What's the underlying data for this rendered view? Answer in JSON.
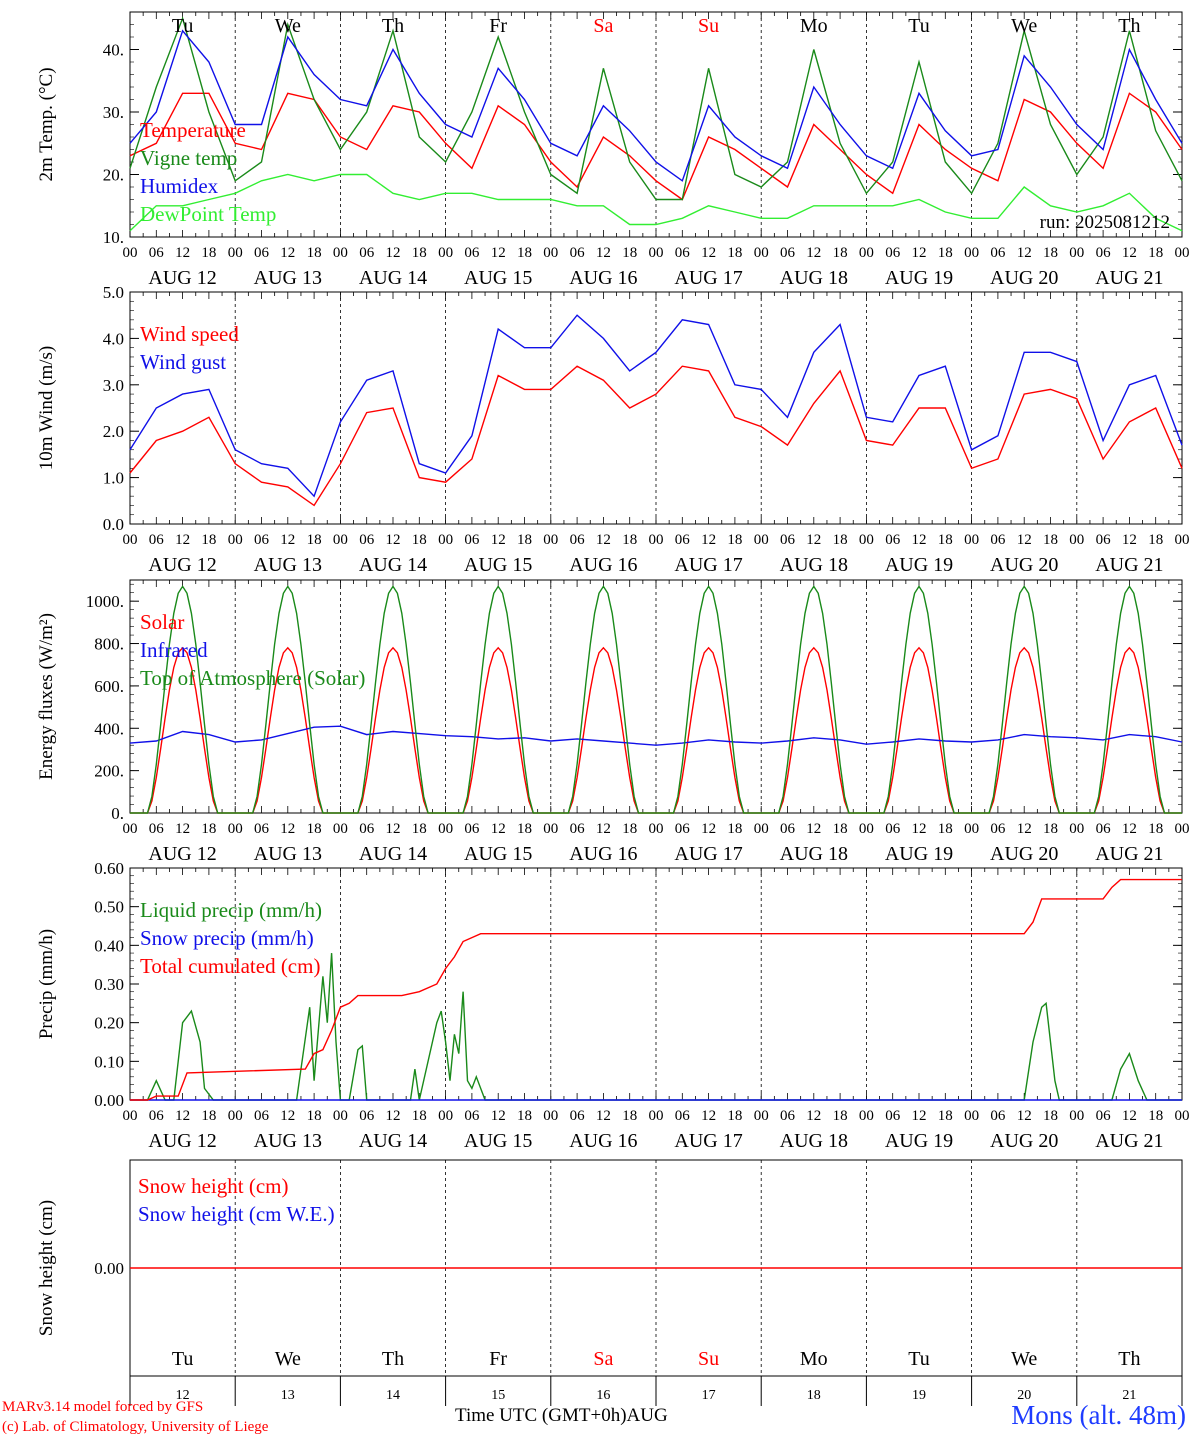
{
  "run_label": "run: 2025081212",
  "footer": {
    "credit_model": "MARv3.14 model forced by GFS",
    "credit_lab": "(c) Lab. of Climatology, University of Liege",
    "xaxis_label": "Time UTC (GMT+0h)AUG",
    "station": "Mons (alt. 48m)"
  },
  "day_labels": [
    "Tu",
    "We",
    "Th",
    "Fr",
    "Sa",
    "Su",
    "Mo",
    "Tu",
    "We",
    "Th"
  ],
  "weekend_days": [
    "Sa",
    "Su"
  ],
  "date_labels": [
    "AUG 12",
    "AUG 13",
    "AUG 14",
    "AUG 15",
    "AUG 16",
    "AUG 17",
    "AUG 18",
    "AUG 19",
    "AUG 20",
    "AUG 21"
  ],
  "day_numbers": [
    "12",
    "13",
    "14",
    "15",
    "16",
    "17",
    "18",
    "19",
    "20",
    "21"
  ],
  "hour_ticks": [
    "00",
    "06",
    "12",
    "18"
  ],
  "colors": {
    "red": "#ff0000",
    "green": "#1a8a1a",
    "blue": "#1010e8",
    "lightgreen": "#32ee32",
    "station": "#1e3cff"
  },
  "chart_data": [
    {
      "type": "line",
      "ylabel": "2m Temp. (°C)",
      "ylim": [
        10,
        46
      ],
      "yticks": [
        "10.",
        "20.",
        "30.",
        "40."
      ],
      "x_unit": "hours since 2025-08-12 00 UTC",
      "x": [
        0,
        6,
        12,
        18,
        24,
        30,
        36,
        42,
        48,
        54,
        60,
        66,
        72,
        78,
        84,
        90,
        96,
        102,
        108,
        114,
        120,
        126,
        132,
        138,
        144,
        150,
        156,
        162,
        168,
        174,
        180,
        186,
        192,
        198,
        204,
        210,
        216,
        222,
        228,
        234,
        240
      ],
      "series": [
        {
          "name": "Temperature",
          "color": "red",
          "values": [
            23,
            25,
            33,
            33,
            25,
            24,
            33,
            32,
            26,
            24,
            31,
            30,
            25,
            21,
            31,
            28,
            22,
            18,
            26,
            23,
            19,
            16,
            26,
            24,
            21,
            18,
            28,
            24,
            20,
            17,
            28,
            24,
            21,
            19,
            32,
            30,
            25,
            21,
            33,
            30,
            24
          ]
        },
        {
          "name": "Vigne temp",
          "color": "green",
          "values": [
            21,
            34,
            45,
            30,
            19,
            22,
            44,
            32,
            24,
            30,
            43,
            26,
            22,
            30,
            42,
            30,
            20,
            17,
            37,
            22,
            16,
            16,
            37,
            20,
            18,
            22,
            40,
            25,
            17,
            22,
            38,
            22,
            17,
            25,
            43,
            28,
            20,
            26,
            43,
            27,
            19
          ]
        },
        {
          "name": "Humidex",
          "color": "blue",
          "values": [
            25,
            30,
            43,
            38,
            28,
            28,
            42,
            36,
            32,
            31,
            40,
            33,
            28,
            26,
            37,
            32,
            25,
            23,
            31,
            27,
            22,
            19,
            31,
            26,
            23,
            21,
            34,
            28,
            23,
            21,
            33,
            27,
            23,
            24,
            39,
            34,
            28,
            24,
            40,
            32,
            25
          ]
        },
        {
          "name": "DewPoint Temp",
          "color": "lightgreen",
          "values": [
            11,
            15,
            15,
            16,
            17,
            19,
            20,
            19,
            20,
            20,
            17,
            16,
            17,
            17,
            16,
            16,
            16,
            15,
            15,
            12,
            12,
            13,
            15,
            14,
            13,
            13,
            15,
            15,
            15,
            15,
            16,
            14,
            13,
            13,
            18,
            15,
            14,
            15,
            17,
            13,
            11
          ]
        }
      ]
    },
    {
      "type": "line",
      "ylabel": "10m Wind (m/s)",
      "ylim": [
        0,
        5
      ],
      "yticks": [
        "0.0",
        "1.0",
        "2.0",
        "3.0",
        "4.0",
        "5.0"
      ],
      "x_unit": "hours since 2025-08-12 00 UTC",
      "x": [
        0,
        6,
        12,
        18,
        24,
        30,
        36,
        42,
        48,
        54,
        60,
        66,
        72,
        78,
        84,
        90,
        96,
        102,
        108,
        114,
        120,
        126,
        132,
        138,
        144,
        150,
        156,
        162,
        168,
        174,
        180,
        186,
        192,
        198,
        204,
        210,
        216,
        222,
        228,
        234,
        240
      ],
      "series": [
        {
          "name": "Wind speed",
          "color": "red",
          "values": [
            1.1,
            1.8,
            2.0,
            2.3,
            1.3,
            0.9,
            0.8,
            0.4,
            1.3,
            2.4,
            2.5,
            1.0,
            0.9,
            1.4,
            3.2,
            2.9,
            2.9,
            3.4,
            3.1,
            2.5,
            2.8,
            3.4,
            3.3,
            2.3,
            2.1,
            1.7,
            2.6,
            3.3,
            1.8,
            1.7,
            2.5,
            2.5,
            1.2,
            1.4,
            2.8,
            2.9,
            2.7,
            1.4,
            2.2,
            2.5,
            1.2
          ]
        },
        {
          "name": "Wind gust",
          "color": "blue",
          "values": [
            1.6,
            2.5,
            2.8,
            2.9,
            1.6,
            1.3,
            1.2,
            0.6,
            2.2,
            3.1,
            3.3,
            1.3,
            1.1,
            1.9,
            4.2,
            3.8,
            3.8,
            4.5,
            4.0,
            3.3,
            3.7,
            4.4,
            4.3,
            3.0,
            2.9,
            2.3,
            3.7,
            4.3,
            2.3,
            2.2,
            3.2,
            3.4,
            1.6,
            1.9,
            3.7,
            3.7,
            3.5,
            1.8,
            3.0,
            3.2,
            1.7
          ]
        }
      ]
    },
    {
      "type": "line",
      "ylabel": "Energy fluxes (W/m²)",
      "ylim": [
        0,
        1100
      ],
      "yticks": [
        "0.",
        "200.",
        "400.",
        "600.",
        "800.",
        "1000."
      ],
      "x_unit": "hours since 2025-08-12 00 UTC",
      "x": [
        0,
        6,
        12,
        18,
        24,
        30,
        36,
        42,
        48,
        54,
        60,
        66,
        72,
        78,
        84,
        90,
        96,
        102,
        108,
        114,
        120,
        126,
        132,
        138,
        144,
        150,
        156,
        162,
        168,
        174,
        180,
        186,
        192,
        198,
        204,
        210,
        216,
        222,
        228,
        234,
        240
      ],
      "series": [
        {
          "name": "Solar",
          "color": "red",
          "diurnal_peak": 780
        },
        {
          "name": "Infrared",
          "color": "blue",
          "values": [
            330,
            340,
            385,
            370,
            335,
            345,
            375,
            405,
            410,
            370,
            385,
            375,
            365,
            360,
            350,
            355,
            340,
            350,
            340,
            330,
            320,
            330,
            345,
            335,
            330,
            340,
            355,
            345,
            325,
            335,
            350,
            340,
            335,
            345,
            370,
            360,
            355,
            345,
            370,
            360,
            335
          ]
        },
        {
          "name": "Top of Atmosphere (Solar)",
          "color": "green",
          "diurnal_peak": 1070
        }
      ]
    },
    {
      "type": "line",
      "ylabel": "Precip (mm/h)",
      "ylim": [
        0,
        0.6
      ],
      "yticks": [
        "0.00",
        "0.10",
        "0.20",
        "0.30",
        "0.40",
        "0.50",
        "0.60"
      ],
      "x_unit": "hours since 2025-08-12 00 UTC",
      "series": [
        {
          "name": "Liquid precip (mm/h)",
          "color": "green",
          "points": [
            [
              0,
              0
            ],
            [
              4,
              0
            ],
            [
              6,
              0.05
            ],
            [
              8,
              0
            ],
            [
              10,
              0
            ],
            [
              12,
              0.2
            ],
            [
              14,
              0.23
            ],
            [
              16,
              0.15
            ],
            [
              17,
              0.03
            ],
            [
              19,
              0
            ],
            [
              38,
              0
            ],
            [
              41,
              0.24
            ],
            [
              42,
              0.05
            ],
            [
              44,
              0.32
            ],
            [
              45,
              0.2
            ],
            [
              46,
              0.38
            ],
            [
              47,
              0.15
            ],
            [
              48,
              0
            ],
            [
              50,
              0
            ],
            [
              52,
              0.13
            ],
            [
              53,
              0.14
            ],
            [
              54,
              0
            ],
            [
              64,
              0
            ],
            [
              65,
              0.08
            ],
            [
              66,
              0
            ],
            [
              70,
              0.2
            ],
            [
              71,
              0.23
            ],
            [
              72,
              0.15
            ],
            [
              73,
              0.05
            ],
            [
              74,
              0.17
            ],
            [
              75,
              0.12
            ],
            [
              76,
              0.28
            ],
            [
              77,
              0.05
            ],
            [
              78,
              0.03
            ],
            [
              79,
              0.06
            ],
            [
              81,
              0
            ],
            [
              204,
              0
            ],
            [
              206,
              0.15
            ],
            [
              208,
              0.24
            ],
            [
              209,
              0.25
            ],
            [
              211,
              0.05
            ],
            [
              212,
              0
            ],
            [
              224,
              0
            ],
            [
              226,
              0.08
            ],
            [
              228,
              0.12
            ],
            [
              230,
              0.05
            ],
            [
              232,
              0
            ],
            [
              240,
              0
            ]
          ]
        },
        {
          "name": "Snow precip (mm/h)",
          "color": "blue",
          "points": [
            [
              0,
              0
            ],
            [
              240,
              0
            ]
          ]
        },
        {
          "name": "Total cumulated (cm)",
          "color": "red",
          "points": [
            [
              0,
              0
            ],
            [
              4,
              0
            ],
            [
              6,
              0.01
            ],
            [
              11,
              0.01
            ],
            [
              13,
              0.07
            ],
            [
              40,
              0.08
            ],
            [
              42,
              0.12
            ],
            [
              44,
              0.13
            ],
            [
              46,
              0.18
            ],
            [
              48,
              0.24
            ],
            [
              50,
              0.25
            ],
            [
              52,
              0.27
            ],
            [
              62,
              0.27
            ],
            [
              66,
              0.28
            ],
            [
              70,
              0.3
            ],
            [
              72,
              0.34
            ],
            [
              74,
              0.37
            ],
            [
              76,
              0.41
            ],
            [
              78,
              0.42
            ],
            [
              80,
              0.43
            ],
            [
              204,
              0.43
            ],
            [
              206,
              0.46
            ],
            [
              208,
              0.52
            ],
            [
              222,
              0.52
            ],
            [
              224,
              0.55
            ],
            [
              226,
              0.57
            ],
            [
              240,
              0.57
            ]
          ]
        }
      ]
    },
    {
      "type": "line",
      "ylabel": "Snow height (cm)",
      "ylim": [
        -1,
        1
      ],
      "yticks": [
        "0.00"
      ],
      "x_unit": "hours since 2025-08-12 00 UTC",
      "series": [
        {
          "name": "Snow height (cm)",
          "color": "red",
          "points": [
            [
              0,
              0
            ],
            [
              240,
              0
            ]
          ]
        },
        {
          "name": "Snow height (cm W.E.)",
          "color": "blue",
          "points": []
        }
      ]
    }
  ]
}
